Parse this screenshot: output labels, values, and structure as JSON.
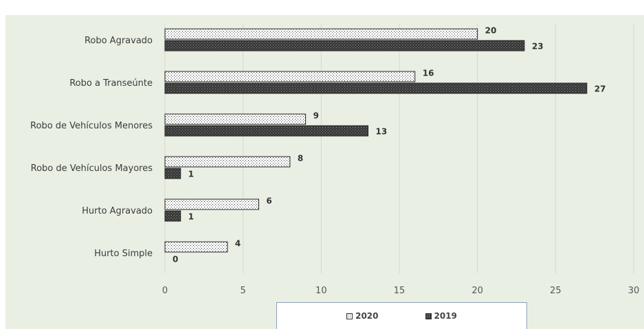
{
  "chart_data": {
    "type": "bar",
    "orientation": "horizontal",
    "title": "",
    "categories": [
      "Robo Agravado",
      "Robo a Transeúnte",
      "Robo de Vehículos Menores",
      "Robo de Vehículos Mayores",
      "Hurto Agravado",
      "Hurto Simple"
    ],
    "series": [
      {
        "name": "2020",
        "values": [
          20,
          16,
          9,
          8,
          6,
          4
        ],
        "color": "#ffffff",
        "pattern": "dotted-light"
      },
      {
        "name": "2019",
        "values": [
          23,
          27,
          13,
          1,
          1,
          0
        ],
        "color": "#3a3a3a",
        "pattern": "dotted-dark"
      }
    ],
    "xlim": [
      0,
      30
    ],
    "xticks": [
      0,
      5,
      10,
      15,
      20,
      25,
      30
    ],
    "grid": true,
    "legend_position": "bottom",
    "data_labels": true
  },
  "legend": {
    "item_2020": "2020",
    "item_2019": "2019"
  }
}
